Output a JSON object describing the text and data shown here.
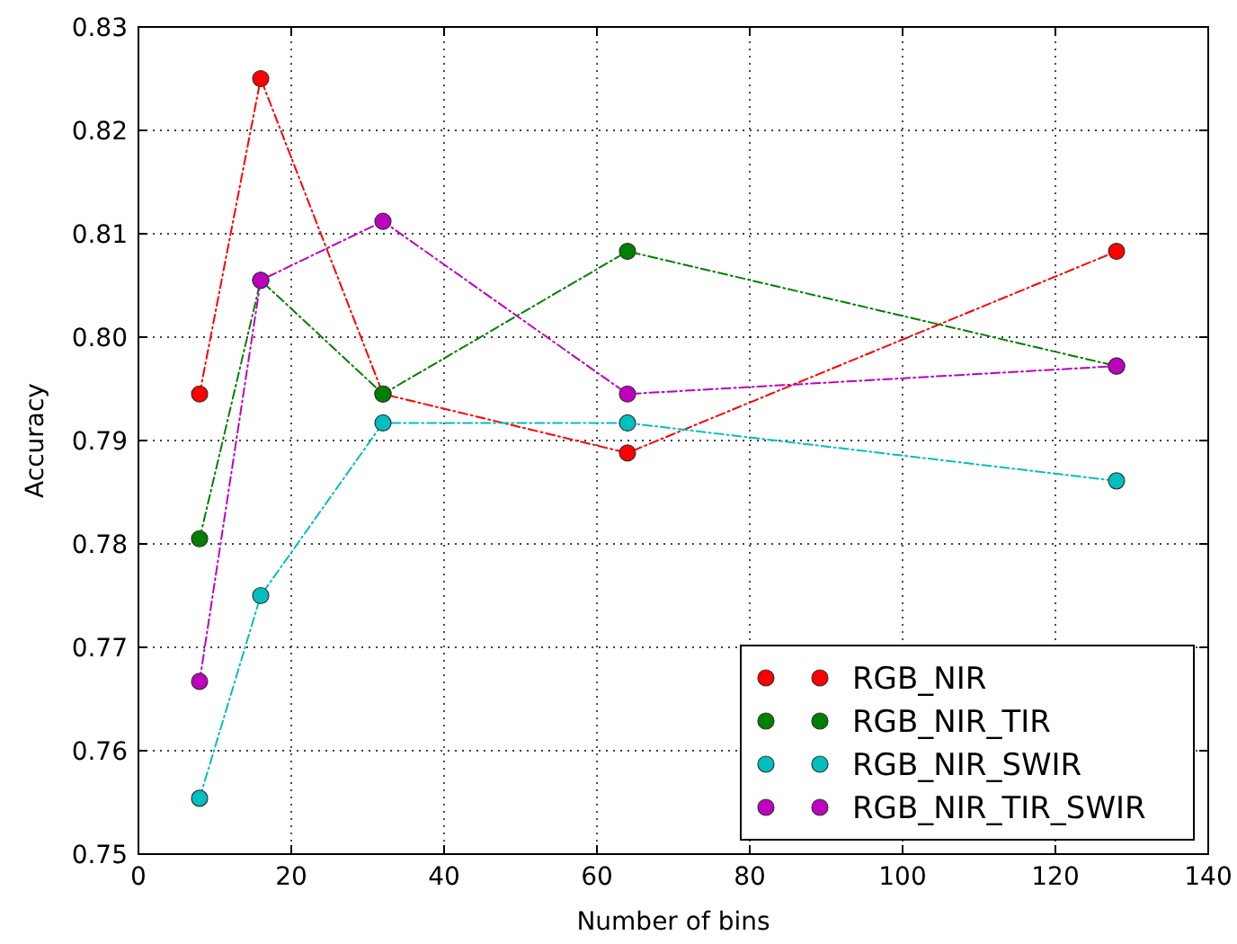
{
  "chart_data": {
    "type": "line",
    "xlabel": "Number of bins",
    "ylabel": "Accuracy",
    "x": [
      8,
      16,
      32,
      64,
      128
    ],
    "xlim": [
      0,
      140
    ],
    "xticks": [
      0,
      20,
      40,
      60,
      80,
      100,
      120,
      140
    ],
    "ylim": [
      0.75,
      0.83
    ],
    "yticks": [
      0.75,
      0.76,
      0.77,
      0.78,
      0.79,
      {
        "value": 0.8,
        "label": "0.80"
      },
      0.81,
      0.82,
      0.83
    ],
    "grid": true,
    "legend": "bottom right",
    "marker": "circle",
    "line_style": "dashed",
    "series": [
      {
        "name": "RGB_NIR",
        "color": "#ff0000",
        "values": [
          0.7945,
          0.825,
          0.7945,
          0.7888,
          0.8083
        ]
      },
      {
        "name": "RGB_NIR_TIR",
        "color": "#008000",
        "values": [
          0.7805,
          0.8055,
          0.7945,
          0.8083,
          0.7972
        ]
      },
      {
        "name": "RGB_NIR_SWIR",
        "color": "#00bfbf",
        "values": [
          0.7554,
          0.775,
          0.7917,
          0.7917,
          0.7861
        ]
      },
      {
        "name": "RGB_NIR_TIR_SWIR",
        "color": "#bf00bf",
        "values": [
          0.7667,
          0.8055,
          0.8112,
          0.7945,
          0.7972
        ]
      }
    ]
  }
}
